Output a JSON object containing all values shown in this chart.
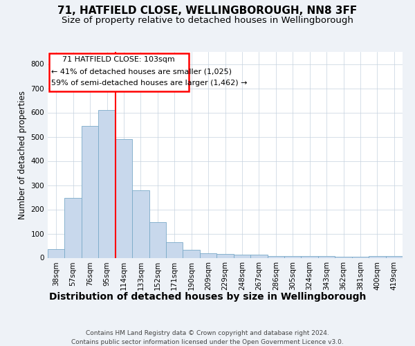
{
  "title": "71, HATFIELD CLOSE, WELLINGBOROUGH, NN8 3FF",
  "subtitle": "Size of property relative to detached houses in Wellingborough",
  "xlabel": "Distribution of detached houses by size in Wellingborough",
  "ylabel": "Number of detached properties",
  "categories": [
    "38sqm",
    "57sqm",
    "76sqm",
    "95sqm",
    "114sqm",
    "133sqm",
    "152sqm",
    "171sqm",
    "190sqm",
    "209sqm",
    "229sqm",
    "248sqm",
    "267sqm",
    "286sqm",
    "305sqm",
    "324sqm",
    "343sqm",
    "362sqm",
    "381sqm",
    "400sqm",
    "419sqm"
  ],
  "values": [
    35,
    248,
    545,
    610,
    490,
    278,
    148,
    63,
    33,
    20,
    15,
    13,
    12,
    8,
    7,
    6,
    6,
    5,
    5,
    8,
    7
  ],
  "bar_color": "#c8d8ec",
  "bar_edge_color": "#7aaac8",
  "annotation_text_line1": "71 HATFIELD CLOSE: 103sqm",
  "annotation_text_line2": "← 41% of detached houses are smaller (1,025)",
  "annotation_text_line3": "59% of semi-detached houses are larger (1,462) →",
  "annotation_box_color": "white",
  "annotation_box_edge_color": "red",
  "vline_color": "red",
  "vline_x": 3.5,
  "ylim": [
    0,
    850
  ],
  "yticks": [
    0,
    100,
    200,
    300,
    400,
    500,
    600,
    700,
    800
  ],
  "footnote": "Contains HM Land Registry data © Crown copyright and database right 2024.\nContains public sector information licensed under the Open Government Licence v3.0.",
  "background_color": "#eef2f7",
  "plot_bg_color": "white",
  "grid_color": "#c5d2de",
  "title_fontsize": 11,
  "subtitle_fontsize": 9.5,
  "xlabel_fontsize": 10,
  "ylabel_fontsize": 8.5,
  "tick_fontsize": 7.5,
  "footnote_fontsize": 6.5
}
